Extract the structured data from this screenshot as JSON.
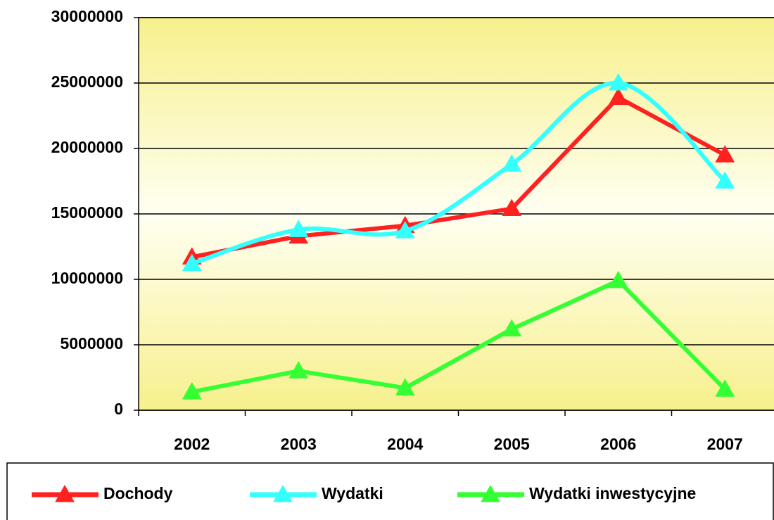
{
  "chart_data": {
    "type": "line",
    "categories": [
      "2002",
      "2003",
      "2004",
      "2005",
      "2006",
      "2007"
    ],
    "series": [
      {
        "name": "Dochody",
        "color": "#ff2020",
        "smooth": false,
        "values": [
          11700000,
          13300000,
          14100000,
          15400000,
          23900000,
          19500000
        ]
      },
      {
        "name": "Wydatki",
        "color": "#33ffff",
        "smooth": true,
        "values": [
          11200000,
          13800000,
          13700000,
          18800000,
          25000000,
          17500000
        ]
      },
      {
        "name": "Wydatki inwestycyjne",
        "color": "#33ff33",
        "smooth": false,
        "values": [
          1400000,
          3000000,
          1700000,
          6200000,
          9900000,
          1600000
        ]
      }
    ],
    "ylim": [
      0,
      30000000
    ],
    "yticks": [
      0,
      5000000,
      10000000,
      15000000,
      20000000,
      25000000,
      30000000
    ],
    "grid": true,
    "legend": "bottom"
  }
}
